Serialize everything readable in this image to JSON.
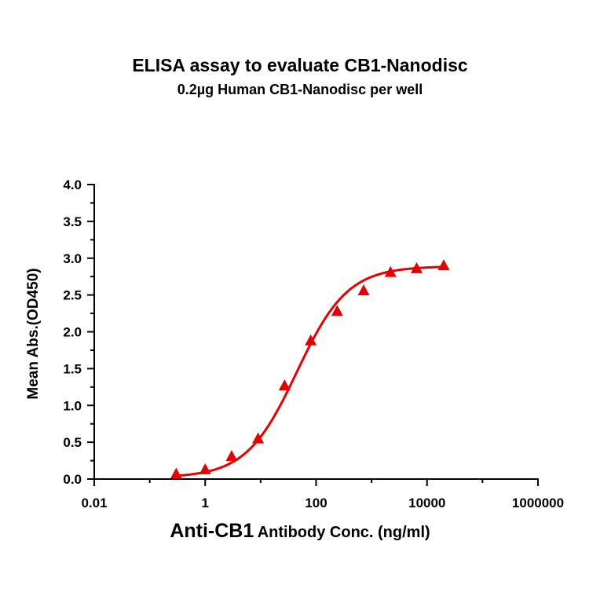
{
  "chart_data": {
    "type": "scatter",
    "title": "ELISA assay to evaluate CB1-Nanodisc",
    "subtitle": "0.2µg Human CB1-Nanodisc per well",
    "xlabel_main": "Anti-CB1",
    "xlabel_rest": "Antibody Conc. (ng/ml)",
    "ylabel": "Mean Abs.(OD450)",
    "x_scale": "log",
    "xlim": [
      0.01,
      1000000
    ],
    "ylim": [
      0.0,
      4.0
    ],
    "x_ticks": [
      "0.01",
      "1",
      "100",
      "10000",
      "1000000"
    ],
    "y_ticks": [
      "0.0",
      "0.5",
      "1.0",
      "1.5",
      "2.0",
      "2.5",
      "3.0",
      "3.5",
      "4.0"
    ],
    "grid": false,
    "color": "#e60000",
    "marker": "triangle",
    "series": [
      {
        "x": [
          0.3,
          1.0,
          3.0,
          9.0,
          27.0,
          80.0,
          240.0,
          720.0,
          2200.0,
          6500.0,
          20000.0
        ],
        "y": [
          0.07,
          0.13,
          0.31,
          0.55,
          1.27,
          1.88,
          2.28,
          2.56,
          2.81,
          2.86,
          2.9
        ]
      }
    ],
    "fit_curve": {
      "model": "4PL",
      "bottom": 0.02,
      "top": 2.89,
      "ec50": 45.0,
      "hill": 0.95,
      "x_range": [
        0.3,
        20000.0
      ]
    }
  }
}
